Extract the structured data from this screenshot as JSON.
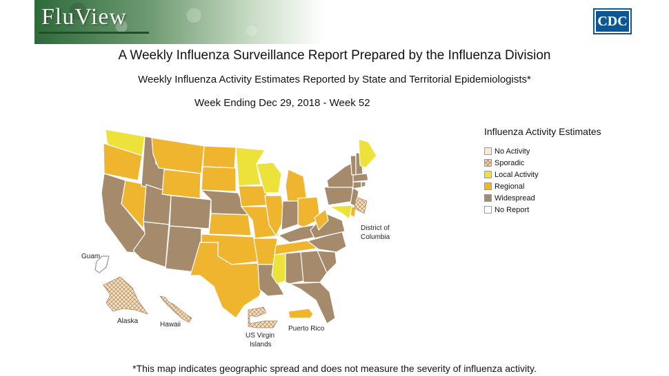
{
  "header": {
    "logo_text": "FluView",
    "agency_logo": "CDC"
  },
  "titles": {
    "main": "A Weekly Influenza Surveillance Report Prepared by the Influenza Division",
    "sub": "Weekly Influenza Activity Estimates Reported by State and Territorial Epidemiologists*",
    "week": "Week Ending Dec 29, 2018 - Week 52"
  },
  "legend": {
    "title": "Influenza Activity Estimates",
    "items": [
      {
        "label": "No Activity",
        "color": "#fde9d0",
        "pattern": "none"
      },
      {
        "label": "Sporadic",
        "color": "#f3dcb7",
        "pattern": "crosshatch"
      },
      {
        "label": "Local Activity",
        "color": "#ede23c",
        "pattern": "none"
      },
      {
        "label": "Regional",
        "color": "#f0b52f",
        "pattern": "none"
      },
      {
        "label": "Widespread",
        "color": "#a58a6c",
        "pattern": "none"
      },
      {
        "label": "No Report",
        "color": "#ffffff",
        "pattern": "none"
      }
    ]
  },
  "map_labels": {
    "dc": "District of Columbia",
    "guam": "Guam",
    "alaska": "Alaska",
    "hawaii": "Hawaii",
    "usvi": "US Virgin Islands",
    "puerto_rico": "Puerto Rico"
  },
  "map_data": {
    "colors": {
      "local": "#ede23c",
      "regional": "#f0b52f",
      "widespread": "#a58a6c",
      "sporadic": "#f3dcb7",
      "no_report": "#ffffff"
    },
    "activity": {
      "Washington": "Local Activity",
      "Oregon": "Regional",
      "California": "Widespread",
      "Nevada": "Regional",
      "Idaho": "Widespread",
      "Montana": "Regional",
      "Wyoming": "Regional",
      "Utah": "Widespread",
      "Arizona": "Widespread",
      "Colorado": "Widespread",
      "New Mexico": "Widespread",
      "North Dakota": "Regional",
      "South Dakota": "Regional",
      "Nebraska": "Widespread",
      "Kansas": "Regional",
      "Oklahoma": "Regional",
      "Texas": "Regional",
      "Minnesota": "Local Activity",
      "Iowa": "Regional",
      "Missouri": "Regional",
      "Arkansas": "Regional",
      "Louisiana": "Widespread",
      "Wisconsin": "Local Activity",
      "Illinois": "Regional",
      "Michigan": "Regional",
      "Indiana": "Widespread",
      "Ohio": "Regional",
      "Kentucky": "Widespread",
      "Tennessee": "Regional",
      "Mississippi": "Local Activity",
      "Alabama": "Widespread",
      "Georgia": "Widespread",
      "Florida": "Widespread",
      "South Carolina": "Widespread",
      "North Carolina": "Widespread",
      "Virginia": "Widespread",
      "West Virginia": "Regional",
      "Pennsylvania": "Widespread",
      "New York": "Widespread",
      "New Jersey": "Widespread",
      "Maryland": "Local Activity",
      "Delaware": "Regional",
      "Vermont": "Widespread",
      "New Hampshire": "Widespread",
      "Maine": "Local Activity",
      "Massachusetts": "Widespread",
      "Connecticut": "Widespread",
      "Rhode Island": "Widespread",
      "District of Columbia": "Sporadic",
      "Alaska": "Sporadic",
      "Hawaii": "Sporadic",
      "Guam": "No Report",
      "Puerto Rico": "Regional",
      "US Virgin Islands": "Sporadic"
    }
  },
  "footnote": "*This map indicates geographic spread and does not measure the severity of influenza activity."
}
